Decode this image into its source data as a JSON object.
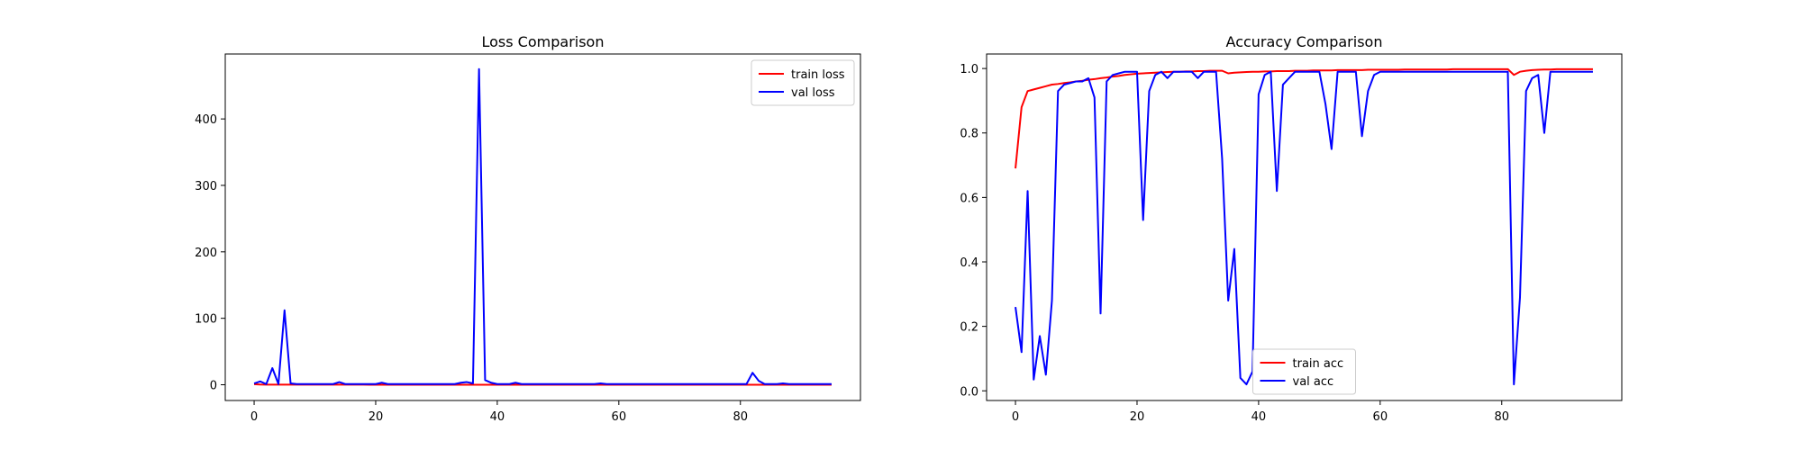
{
  "chart_data": [
    {
      "type": "line",
      "title": "Loss Comparison",
      "xlabel": "",
      "ylabel": "",
      "xlim": [
        -4.75,
        99.75
      ],
      "ylim": [
        -23.7,
        497.7
      ],
      "xticks": [
        0,
        20,
        40,
        60,
        80
      ],
      "yticks": [
        0,
        100,
        200,
        300,
        400
      ],
      "grid": false,
      "legend": "upper right",
      "series": [
        {
          "name": "train loss",
          "color": "#ff0000",
          "x_start": 0,
          "values": [
            0.9,
            0.3,
            0.25,
            0.2,
            0.18,
            0.16,
            0.15,
            0.14,
            0.13,
            0.12,
            0.12,
            0.11,
            0.11,
            0.1,
            0.1,
            0.1,
            0.09,
            0.09,
            0.09,
            0.08,
            0.08,
            0.08,
            0.08,
            0.07,
            0.07,
            0.07,
            0.07,
            0.07,
            0.06,
            0.06,
            0.06,
            0.06,
            0.06,
            0.06,
            0.05,
            0.05,
            0.05,
            0.05,
            0.05,
            0.05,
            0.05,
            0.04,
            0.04,
            0.04,
            0.04,
            0.04,
            0.04,
            0.04,
            0.04,
            0.04,
            0.03,
            0.03,
            0.03,
            0.03,
            0.03,
            0.03,
            0.03,
            0.03,
            0.03,
            0.03,
            0.03,
            0.03,
            0.02,
            0.02,
            0.02,
            0.02,
            0.02,
            0.02,
            0.02,
            0.02,
            0.02,
            0.02,
            0.02,
            0.02,
            0.02,
            0.02,
            0.02,
            0.02,
            0.02,
            0.02,
            0.02,
            0.02,
            0.02,
            0.02,
            0.02,
            0.02,
            0.02,
            0.02,
            0.02,
            0.02,
            0.02,
            0.02,
            0.02,
            0.02,
            0.02,
            0.02
          ]
        },
        {
          "name": "val loss",
          "color": "#0000ff",
          "x_start": 0,
          "values": [
            2,
            5,
            1,
            25,
            1,
            112,
            2,
            1,
            1,
            1,
            1,
            1,
            1,
            1,
            4,
            1,
            1,
            1,
            1,
            1,
            1,
            3,
            1,
            1,
            1,
            1,
            1,
            1,
            1,
            1,
            1,
            1,
            1,
            1,
            3,
            4,
            2,
            475,
            7,
            3,
            1,
            1,
            1,
            3,
            1,
            1,
            1,
            1,
            1,
            1,
            1,
            1,
            1,
            1,
            1,
            1,
            1,
            2,
            1,
            1,
            1,
            1,
            1,
            1,
            1,
            1,
            1,
            1,
            1,
            1,
            1,
            1,
            1,
            1,
            1,
            1,
            1,
            1,
            1,
            1,
            1,
            1,
            18,
            6,
            1,
            1,
            1,
            2,
            1,
            1,
            1,
            1,
            1,
            1,
            1,
            1
          ]
        }
      ]
    },
    {
      "type": "line",
      "title": "Accuracy Comparison",
      "xlabel": "",
      "ylabel": "",
      "xlim": [
        -4.75,
        99.75
      ],
      "ylim": [
        -0.03,
        1.045
      ],
      "xticks": [
        0,
        20,
        40,
        60,
        80
      ],
      "yticks": [
        0.0,
        0.2,
        0.4,
        0.6,
        0.8,
        1.0
      ],
      "grid": false,
      "legend": "lower center",
      "series": [
        {
          "name": "train acc",
          "color": "#ff0000",
          "x_start": 0,
          "values": [
            0.69,
            0.88,
            0.93,
            0.935,
            0.94,
            0.945,
            0.95,
            0.952,
            0.955,
            0.957,
            0.96,
            0.962,
            0.965,
            0.967,
            0.97,
            0.972,
            0.975,
            0.977,
            0.98,
            0.982,
            0.984,
            0.985,
            0.986,
            0.987,
            0.988,
            0.989,
            0.99,
            0.99,
            0.991,
            0.991,
            0.992,
            0.992,
            0.993,
            0.993,
            0.993,
            0.985,
            0.987,
            0.988,
            0.989,
            0.99,
            0.99,
            0.991,
            0.991,
            0.992,
            0.992,
            0.992,
            0.993,
            0.993,
            0.993,
            0.994,
            0.994,
            0.994,
            0.994,
            0.995,
            0.995,
            0.995,
            0.995,
            0.995,
            0.996,
            0.996,
            0.996,
            0.996,
            0.996,
            0.996,
            0.997,
            0.997,
            0.997,
            0.997,
            0.997,
            0.997,
            0.997,
            0.997,
            0.998,
            0.998,
            0.998,
            0.998,
            0.998,
            0.998,
            0.998,
            0.998,
            0.998,
            0.998,
            0.98,
            0.99,
            0.993,
            0.995,
            0.996,
            0.997,
            0.997,
            0.998,
            0.998,
            0.998,
            0.998,
            0.998,
            0.998,
            0.998
          ]
        },
        {
          "name": "val acc",
          "color": "#0000ff",
          "x_start": 0,
          "values": [
            0.26,
            0.12,
            0.62,
            0.035,
            0.17,
            0.05,
            0.28,
            0.93,
            0.95,
            0.955,
            0.96,
            0.96,
            0.97,
            0.91,
            0.24,
            0.96,
            0.98,
            0.985,
            0.99,
            0.99,
            0.99,
            0.53,
            0.93,
            0.98,
            0.99,
            0.97,
            0.99,
            0.99,
            0.99,
            0.99,
            0.97,
            0.99,
            0.99,
            0.99,
            0.72,
            0.28,
            0.44,
            0.04,
            0.02,
            0.06,
            0.92,
            0.98,
            0.99,
            0.62,
            0.95,
            0.97,
            0.99,
            0.99,
            0.99,
            0.99,
            0.99,
            0.89,
            0.75,
            0.99,
            0.99,
            0.99,
            0.99,
            0.79,
            0.93,
            0.98,
            0.99,
            0.99,
            0.99,
            0.99,
            0.99,
            0.99,
            0.99,
            0.99,
            0.99,
            0.99,
            0.99,
            0.99,
            0.99,
            0.99,
            0.99,
            0.99,
            0.99,
            0.99,
            0.99,
            0.99,
            0.99,
            0.99,
            0.02,
            0.29,
            0.93,
            0.97,
            0.98,
            0.8,
            0.99,
            0.99,
            0.99,
            0.99,
            0.99,
            0.99,
            0.99,
            0.99
          ]
        }
      ]
    }
  ]
}
